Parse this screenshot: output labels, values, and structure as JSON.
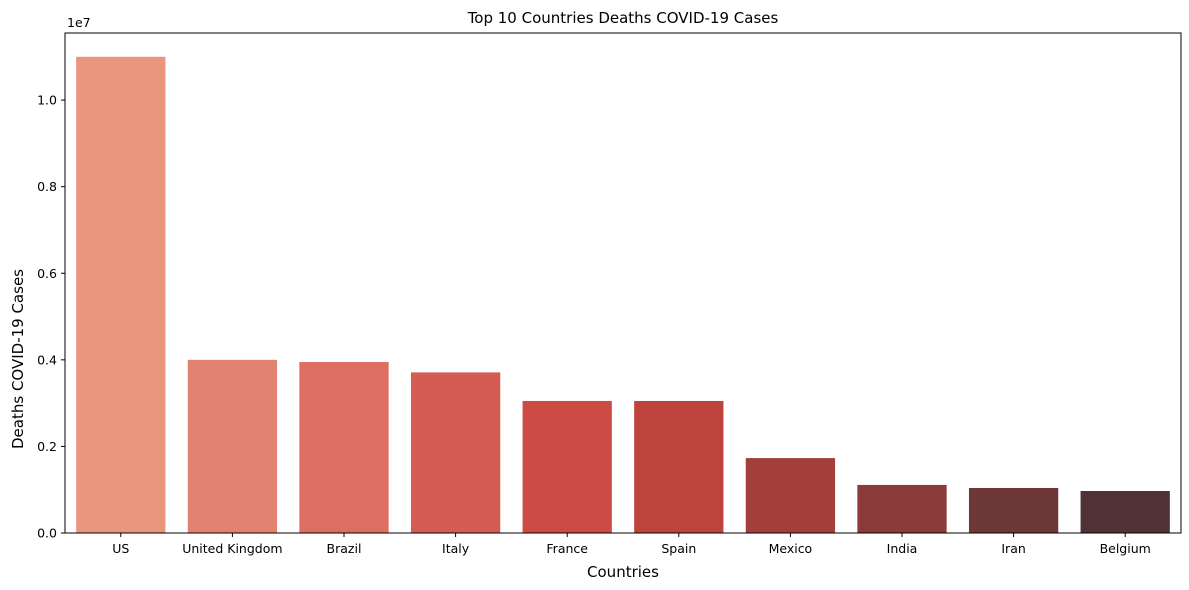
{
  "chart_data": {
    "type": "bar",
    "title": "Top 10 Countries Deaths  COVID-19 Cases",
    "xlabel": "Countries",
    "ylabel": "Deaths COVID-19 Cases",
    "offset_label": "1e7",
    "categories": [
      "US",
      "United Kingdom",
      "Brazil",
      "Italy",
      "France",
      "Spain",
      "Mexico",
      "India",
      "Iran",
      "Belgium"
    ],
    "values": [
      11000000,
      4000000,
      3950000,
      3710000,
      3050000,
      3050000,
      1730000,
      1110000,
      1040000,
      970000
    ],
    "colors": [
      "#e8967e",
      "#e28271",
      "#dd6f62",
      "#d45c53",
      "#cc4b45",
      "#bf433d",
      "#a33f3b",
      "#8a3a39",
      "#6e3737",
      "#503236"
    ],
    "yticks": [
      0,
      2000000,
      4000000,
      6000000,
      8000000,
      10000000
    ],
    "ytick_labels": [
      "0.0",
      "0.2",
      "0.4",
      "0.6",
      "0.8",
      "1.0"
    ],
    "ylim": [
      0,
      11550000
    ],
    "grid": false,
    "legend": "none"
  }
}
